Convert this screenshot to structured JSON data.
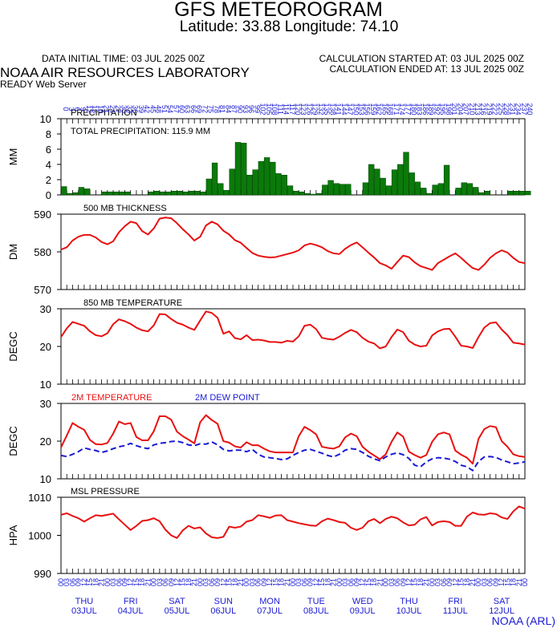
{
  "header": {
    "title": "GFS METEOROGRAM",
    "subtitle": "Latitude: 33.88 Longitude:  74.10",
    "init_time": "DATA INITIAL TIME: 03 JUL 2025 00Z",
    "calc_started": "CALCULATION STARTED AT: 03 JUL 2025 00Z",
    "calc_ended": "CALCULATION ENDED AT: 13 JUL 2025 00Z",
    "lab": "NOAA AIR RESOURCES LABORATORY",
    "server": "READY Web Server",
    "footer": "NOAA (ARL)"
  },
  "colors": {
    "precip_bar": "#0a7a0a",
    "red_line": "#e81010",
    "blue_line": "#1a1ad4",
    "text_blue": "#1a1ad4"
  },
  "chart_data": [
    {
      "type": "bar",
      "title": "PRECIPITATION",
      "annotation": "TOTAL PRECIPITATION: 115.9 MM",
      "ylabel": "MM",
      "ylim": [
        0,
        10
      ],
      "yticks": [
        0,
        2,
        4,
        6,
        8,
        10
      ],
      "top_axis_labels": [
        "0",
        "3",
        "6",
        "9",
        "12",
        "15",
        "18",
        "21",
        "24",
        "27",
        "30",
        "33",
        "36",
        "39",
        "42",
        "45",
        "48",
        "51",
        "54",
        "57",
        "60",
        "63",
        "66",
        "69",
        "72",
        "75",
        "78",
        "81",
        "84",
        "87",
        "90",
        "93",
        "96",
        "99",
        "102",
        "105",
        "108",
        "111",
        "114",
        "117",
        "120",
        "123",
        "126",
        "129",
        "132",
        "135",
        "138",
        "141",
        "144",
        "147",
        "150",
        "153",
        "156",
        "159",
        "162",
        "165",
        "168",
        "171",
        "174",
        "177",
        "180",
        "183",
        "186",
        "189",
        "192",
        "195",
        "198",
        "201",
        "204",
        "207",
        "210",
        "213",
        "216",
        "219",
        "222",
        "225",
        "228",
        "231",
        "234",
        "237",
        "240"
      ],
      "values": [
        1.1,
        0.2,
        0.3,
        1.0,
        0.8,
        0,
        0,
        0.4,
        0.4,
        0.4,
        0.4,
        0.4,
        0,
        0,
        0,
        0.4,
        0.5,
        0.4,
        0.4,
        0.5,
        0.5,
        0.4,
        0.5,
        0.5,
        0.4,
        2.1,
        4.2,
        1.5,
        0.6,
        3.4,
        6.9,
        6.8,
        2.6,
        3.3,
        4.4,
        4.9,
        4.3,
        2.8,
        2.6,
        1.2,
        0.5,
        0.4,
        0.2,
        0.1,
        0.2,
        1.3,
        1.9,
        1.5,
        1.4,
        1.4,
        0,
        0,
        1.6,
        4.0,
        3.4,
        2.2,
        1.2,
        3.3,
        4.0,
        5.6,
        2.9,
        1.7,
        0.9,
        0.2,
        1.3,
        1.5,
        3.9,
        0,
        0.9,
        1.6,
        1.5,
        1.0,
        0.3,
        0.5,
        0,
        0,
        0,
        0.5,
        0.5,
        0.5,
        0.5
      ]
    },
    {
      "type": "line",
      "title": "500 MB  THICKNESS",
      "ylabel": "DM",
      "ylim": [
        570,
        590
      ],
      "yticks": [
        570,
        580,
        590
      ],
      "series": [
        {
          "name": "",
          "values": [
            580.6,
            581.2,
            583.0,
            584.0,
            584.5,
            584.5,
            583.8,
            582.6,
            582.0,
            582.8,
            585.2,
            586.8,
            588.0,
            587.6,
            585.5,
            584.6,
            586.2,
            588.8,
            589.1,
            588.9,
            587.6,
            586.0,
            584.6,
            583.0,
            584.0,
            587.0,
            588.0,
            587.3,
            585.6,
            584.6,
            583.1,
            582.4,
            581.0,
            579.7,
            579.0,
            578.7,
            578.5,
            578.6,
            579.0,
            579.4,
            579.8,
            580.4,
            581.7,
            582.2,
            581.8,
            581.2,
            580.2,
            579.6,
            579.4,
            580.8,
            581.8,
            582.5,
            581.2,
            579.8,
            578.5,
            577.0,
            576.4,
            575.5,
            577.3,
            579.0,
            578.6,
            577.2,
            576.2,
            575.7,
            575.2,
            577.0,
            577.9,
            578.8,
            579.6,
            578.4,
            577.0,
            575.7,
            575.2,
            576.6,
            578.4,
            579.6,
            580.4,
            579.8,
            578.4,
            577.3,
            577.0
          ],
          "color": "#e81010"
        }
      ]
    },
    {
      "type": "line",
      "title": "850 MB  TEMPERATURE",
      "ylabel": "DEGC",
      "ylim": [
        10,
        30
      ],
      "yticks": [
        10,
        20,
        30
      ],
      "series": [
        {
          "name": "",
          "values": [
            22.5,
            24.8,
            26.5,
            26.0,
            25.5,
            24.0,
            23.0,
            22.7,
            23.5,
            25.9,
            27.2,
            26.7,
            26.0,
            25.0,
            24.3,
            24.0,
            25.6,
            28.6,
            28.5,
            27.3,
            26.3,
            25.8,
            25.0,
            24.4,
            26.9,
            29.3,
            28.9,
            27.6,
            23.4,
            24.0,
            22.2,
            21.9,
            23.0,
            21.7,
            21.8,
            21.6,
            21.2,
            21.2,
            21.0,
            21.5,
            21.3,
            22.7,
            25.5,
            25.8,
            24.6,
            22.3,
            22.0,
            21.8,
            22.6,
            23.6,
            24.4,
            23.8,
            22.3,
            21.3,
            20.8,
            19.5,
            20.0,
            22.5,
            24.5,
            23.8,
            21.5,
            20.5,
            20.0,
            20.2,
            22.9,
            24.0,
            24.6,
            24.7,
            22.6,
            20.2,
            20.0,
            19.6,
            22.5,
            25.0,
            26.2,
            26.4,
            24.5,
            23.0,
            21.0,
            20.8,
            20.5
          ],
          "color": "#e81010"
        }
      ]
    },
    {
      "type": "line",
      "ylabel": "DEGC",
      "ylim": [
        10,
        30
      ],
      "yticks": [
        10,
        20,
        30
      ],
      "series": [
        {
          "name": "2M TEMPERATURE",
          "color": "#e81010",
          "dash": false,
          "values": [
            18.3,
            21.5,
            24.8,
            23.8,
            23.0,
            20.3,
            19.2,
            19.1,
            19.5,
            22.0,
            25.2,
            24.5,
            24.8,
            21.1,
            20.2,
            20.2,
            22.6,
            26.6,
            26.6,
            25.7,
            22.5,
            21.3,
            20.4,
            19.4,
            25.0,
            26.9,
            25.6,
            24.6,
            20.0,
            19.6,
            18.6,
            18.3,
            19.7,
            18.9,
            18.9,
            18.0,
            17.3,
            17.0,
            17.0,
            17.0,
            17.0,
            21.3,
            23.8,
            22.9,
            21.8,
            18.5,
            18.2,
            18.0,
            18.6,
            21.0,
            22.0,
            21.3,
            18.5,
            17.2,
            16.2,
            15.2,
            16.5,
            19.8,
            22.3,
            21.2,
            17.2,
            16.3,
            15.6,
            16.3,
            19.8,
            21.8,
            22.3,
            21.8,
            17.5,
            16.4,
            15.6,
            14.0,
            20.6,
            23.2,
            24.0,
            23.7,
            20.0,
            18.5,
            16.5,
            16.0,
            15.8
          ]
        },
        {
          "name": "2M  DEW POINT",
          "color": "#1a1ad4",
          "dash": true,
          "values": [
            16.2,
            15.9,
            16.5,
            17.2,
            18.2,
            17.8,
            17.5,
            17.0,
            17.4,
            18.0,
            18.5,
            18.8,
            19.4,
            18.8,
            18.3,
            18.0,
            19.0,
            19.4,
            19.6,
            19.9,
            20.0,
            19.6,
            19.0,
            18.8,
            19.3,
            19.2,
            19.8,
            19.0,
            17.8,
            17.4,
            17.6,
            17.6,
            17.2,
            17.8,
            16.5,
            15.8,
            15.6,
            15.4,
            15.1,
            15.3,
            16.2,
            17.0,
            17.6,
            17.8,
            17.3,
            16.8,
            16.2,
            15.8,
            16.5,
            17.6,
            18.0,
            17.8,
            17.0,
            16.0,
            15.3,
            14.8,
            15.8,
            16.5,
            16.9,
            16.4,
            15.4,
            13.6,
            13.2,
            14.5,
            15.3,
            15.6,
            15.5,
            15.2,
            14.6,
            13.6,
            13.2,
            12.2,
            14.6,
            15.8,
            15.9,
            15.7,
            15.0,
            14.5,
            14.0,
            14.2,
            14.5
          ]
        }
      ]
    },
    {
      "type": "line",
      "title": "MSL PRESSURE",
      "ylabel": "HPA",
      "ylim": [
        990,
        1010
      ],
      "yticks": [
        990,
        1000,
        1010
      ],
      "x_tick_labels": [
        "00",
        "03",
        "06",
        "09",
        "12",
        "15",
        "18",
        "21",
        "00",
        "03",
        "06",
        "09",
        "12",
        "15",
        "18",
        "21",
        "00",
        "03",
        "06",
        "09",
        "12",
        "15",
        "18",
        "21",
        "00",
        "03",
        "06",
        "09",
        "12",
        "15",
        "18",
        "21",
        "00",
        "03",
        "06",
        "09",
        "12",
        "15",
        "18",
        "21",
        "00",
        "03",
        "06",
        "09",
        "12",
        "15",
        "18",
        "21",
        "00",
        "03",
        "06",
        "09",
        "12",
        "15",
        "18",
        "21",
        "00",
        "03",
        "06",
        "09",
        "12",
        "15",
        "18",
        "21",
        "00",
        "03",
        "06",
        "09",
        "12",
        "15",
        "18",
        "21",
        "00",
        "03",
        "06",
        "09",
        "12",
        "15",
        "18",
        "21",
        "00"
      ],
      "day_labels": [
        {
          "weekday": "THU",
          "date": "03JUL"
        },
        {
          "weekday": "FRI",
          "date": "04JUL"
        },
        {
          "weekday": "SAT",
          "date": "05JUL"
        },
        {
          "weekday": "SUN",
          "date": "06JUL"
        },
        {
          "weekday": "MON",
          "date": "07JUL"
        },
        {
          "weekday": "TUE",
          "date": "08JUL"
        },
        {
          "weekday": "WED",
          "date": "09JUL"
        },
        {
          "weekday": "THU",
          "date": "10JUL"
        },
        {
          "weekday": "FRI",
          "date": "11JUL"
        },
        {
          "weekday": "SAT",
          "date": "12JUL"
        }
      ],
      "series": [
        {
          "name": "",
          "color": "#e81010",
          "values": [
            1005.4,
            1005.8,
            1005.1,
            1004.5,
            1003.6,
            1004.5,
            1005.3,
            1005.1,
            1005.4,
            1005.7,
            1004.2,
            1002.8,
            1001.4,
            1002.5,
            1003.8,
            1004.0,
            1004.5,
            1003.7,
            1001.5,
            1000.0,
            999.3,
            1001.3,
            1002.5,
            1001.8,
            1002.1,
            1000.5,
            999.5,
            999.3,
            999.6,
            1002.3,
            1002.0,
            1002.3,
            1003.6,
            1004.0,
            1005.3,
            1005.0,
            1004.6,
            1005.2,
            1005.3,
            1004.0,
            1003.6,
            1003.2,
            1002.9,
            1002.6,
            1002.5,
            1003.7,
            1004.4,
            1004.0,
            1003.5,
            1003.3,
            1002.0,
            1001.4,
            1002.0,
            1003.7,
            1004.3,
            1003.2,
            1004.3,
            1004.9,
            1004.5,
            1003.4,
            1002.6,
            1002.8,
            1004.2,
            1004.8,
            1002.6,
            1003.5,
            1003.7,
            1003.5,
            1002.5,
            1002.5,
            1004.9,
            1006.0,
            1005.5,
            1005.4,
            1005.8,
            1005.6,
            1004.7,
            1004.3,
            1006.3,
            1007.6,
            1007.0
          ]
        }
      ]
    }
  ]
}
